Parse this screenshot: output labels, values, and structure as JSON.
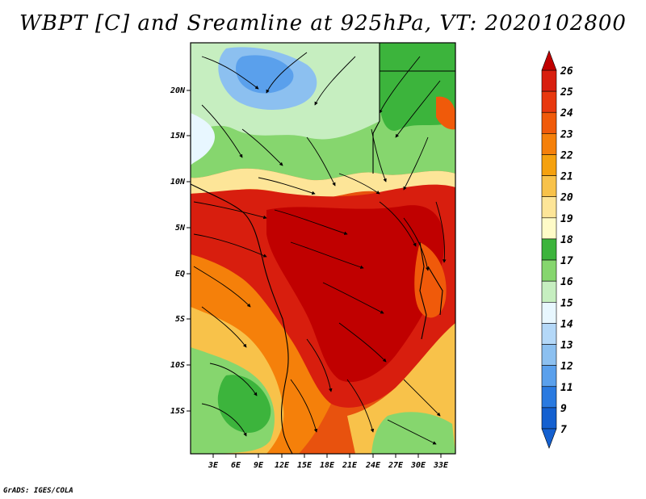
{
  "title": "WBPT [C] and Sreamline at 925hPa, VT: 2020102800",
  "footer": "GrADS: IGES/COLA",
  "lat_labels": [
    "20N",
    "15N",
    "10N",
    "5N",
    "EQ",
    "5S",
    "10S",
    "15S"
  ],
  "lon_labels": [
    "3E",
    "6E",
    "9E",
    "12E",
    "15E",
    "18E",
    "21E",
    "24E",
    "27E",
    "30E",
    "33E"
  ],
  "colorbar": {
    "labels": [
      "26",
      "25",
      "24",
      "23",
      "22",
      "21",
      "20",
      "19",
      "18",
      "17",
      "16",
      "15",
      "14",
      "13",
      "12",
      "11",
      "9",
      "7"
    ],
    "colors": [
      "#c00000",
      "#d81e0e",
      "#e8380e",
      "#f05a0a",
      "#f5800a",
      "#f5a10e",
      "#f8c24a",
      "#fde598",
      "#fffbc8",
      "#3cb43c",
      "#86d66e",
      "#c6eec0",
      "#e8f7ff",
      "#b4d8f8",
      "#8cc0f0",
      "#5aa0ec",
      "#2a7ae0",
      "#1460d0"
    ]
  }
}
